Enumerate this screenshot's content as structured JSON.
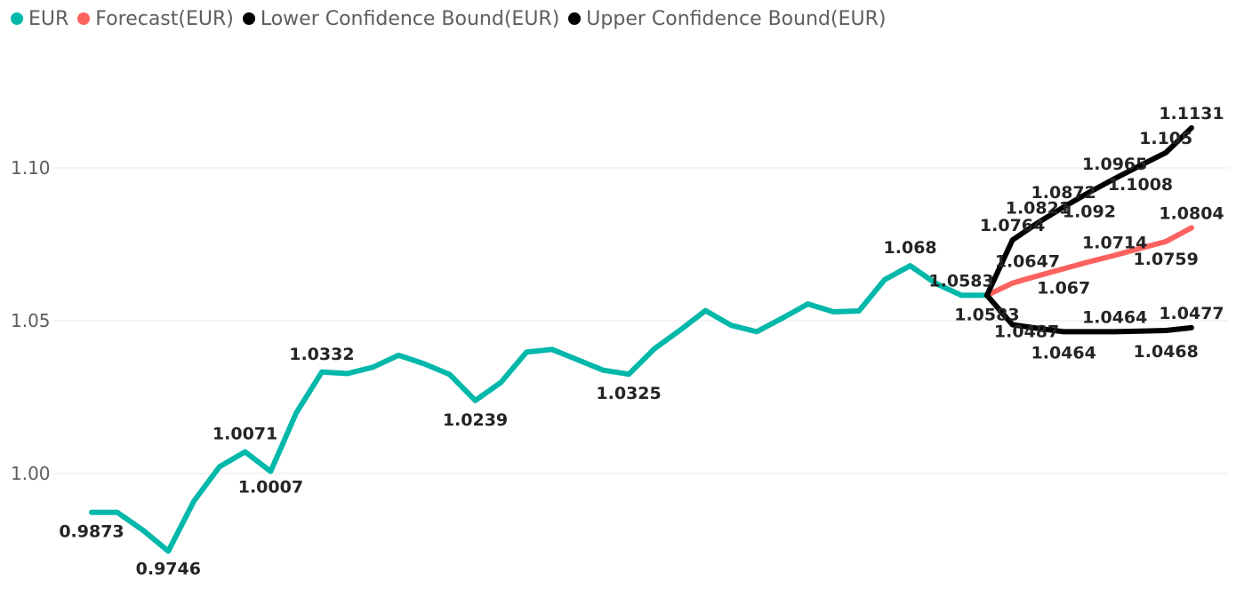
{
  "legend": {
    "items": [
      {
        "label": "EUR",
        "color": "#01B8AA"
      },
      {
        "label": "Forecast(EUR)",
        "color": "#FD625E"
      },
      {
        "label": "Lower Confidence Bound(EUR)",
        "color": "#000000"
      },
      {
        "label": "Upper Confidence Bound(EUR)",
        "color": "#000000"
      }
    ]
  },
  "chart_data": {
    "type": "line",
    "title": "",
    "xlabel": "",
    "ylabel": "",
    "ylim": [
      0.97,
      1.125
    ],
    "yticks": [
      1.0,
      1.05,
      1.1
    ],
    "ytick_labels": [
      "1.00",
      "1.05",
      "1.10"
    ],
    "grid": true,
    "legend_position": "top-left",
    "series": [
      {
        "name": "EUR",
        "color": "#01B8AA",
        "x": [
          0,
          1,
          2,
          3,
          4,
          5,
          6,
          7,
          8,
          9,
          10,
          11,
          12,
          13,
          14,
          15,
          16,
          17,
          18,
          19,
          20,
          21,
          22,
          23,
          24,
          25,
          26,
          27,
          28,
          29,
          30,
          31,
          32,
          33,
          34,
          35
        ],
        "values": [
          0.9873,
          0.9873,
          0.9815,
          0.9746,
          0.991,
          1.0022,
          1.0071,
          1.0007,
          1.0198,
          1.0332,
          1.0327,
          1.0348,
          1.0387,
          1.0359,
          1.0324,
          1.0239,
          1.0298,
          1.0397,
          1.0406,
          1.0372,
          1.0338,
          1.0325,
          1.0408,
          1.0469,
          1.0533,
          1.0485,
          1.0464,
          1.0508,
          1.0555,
          1.0529,
          1.0532,
          1.0634,
          1.068,
          1.0622,
          1.0583,
          1.0583
        ],
        "labels": {
          "0": "0.9873",
          "3": "0.9746",
          "6": "1.0071",
          "7": "1.0007",
          "9": "1.0332",
          "15": "1.0239",
          "21": "1.0325",
          "32": "1.068",
          "34": "1.0583"
        }
      },
      {
        "name": "Forecast(EUR)",
        "color": "#FD625E",
        "x": [
          35,
          36,
          37,
          38,
          39,
          40,
          41,
          42,
          43
        ],
        "values": [
          1.0583,
          1.0623,
          1.0647,
          1.067,
          1.0693,
          1.0714,
          1.0737,
          1.0759,
          1.0804
        ],
        "labels": {
          "37": "1.0647",
          "38": "1.067",
          "40": "1.0714",
          "42": "1.0759",
          "43": "1.0804"
        }
      },
      {
        "name": "Lower Confidence Bound(EUR)",
        "color": "#000000",
        "x": [
          35,
          36,
          37,
          38,
          39,
          40,
          41,
          42,
          43
        ],
        "values": [
          1.0583,
          1.0487,
          1.0475,
          1.0464,
          1.0464,
          1.0464,
          1.0466,
          1.0468,
          1.0477
        ],
        "labels": {
          "35": "1.0583",
          "36": "1.0487",
          "38": "1.0464",
          "40": "1.0464",
          "42": "1.0468",
          "43": "1.0477"
        }
      },
      {
        "name": "Upper Confidence Bound(EUR)",
        "color": "#000000",
        "x": [
          35,
          36,
          37,
          38,
          39,
          40,
          41,
          42,
          43
        ],
        "values": [
          1.0583,
          1.0764,
          1.0821,
          1.0872,
          1.092,
          1.0965,
          1.1008,
          1.105,
          1.1131
        ],
        "labels": {
          "36": "1.0764",
          "37": "1.0821",
          "38": "1.0872",
          "39": "1.092",
          "40": "1.0965",
          "41": "1.1008",
          "42": "1.105",
          "43": "1.1131"
        }
      }
    ]
  }
}
